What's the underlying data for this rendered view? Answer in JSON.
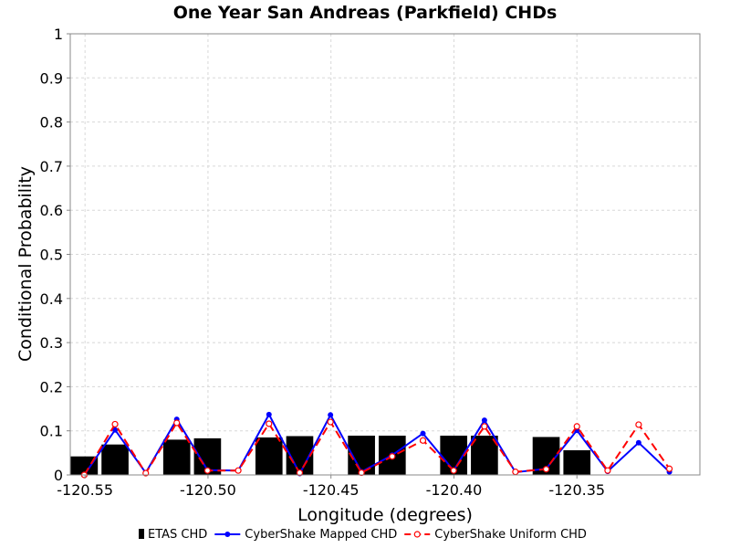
{
  "chart_data": {
    "type": "bar",
    "title": "One Year San Andreas (Parkfield) CHDs",
    "xlabel": "Longitude (degrees)",
    "ylabel": "Conditional Probability",
    "xlim": [
      -120.556,
      -120.3
    ],
    "ylim": [
      0,
      1
    ],
    "x_ticks": [
      {
        "value": -120.55,
        "label": "-120.55"
      },
      {
        "value": -120.5,
        "label": "-120.50"
      },
      {
        "value": -120.45,
        "label": "-120.45"
      },
      {
        "value": -120.4,
        "label": "-120.40"
      },
      {
        "value": -120.35,
        "label": "-120.35"
      }
    ],
    "y_ticks": [
      {
        "value": 0,
        "label": "0"
      },
      {
        "value": 0.1,
        "label": "0.1"
      },
      {
        "value": 0.2,
        "label": "0.2"
      },
      {
        "value": 0.3,
        "label": "0.3"
      },
      {
        "value": 0.4,
        "label": "0.4"
      },
      {
        "value": 0.5,
        "label": "0.5"
      },
      {
        "value": 0.6,
        "label": "0.6"
      },
      {
        "value": 0.7,
        "label": "0.7"
      },
      {
        "value": 0.8,
        "label": "0.8"
      },
      {
        "value": 0.9,
        "label": "0.9"
      },
      {
        "value": 1,
        "label": "1"
      }
    ],
    "grid": true,
    "legend_position": "bottom",
    "bar_width": 0.011,
    "series": [
      {
        "name": "ETAS CHD",
        "kind": "bar",
        "color": "#000000",
        "x": [
          -120.5503,
          -120.5378,
          -120.5127,
          -120.5002,
          -120.4752,
          -120.4627,
          -120.4376,
          -120.4251,
          -120.4001,
          -120.3876,
          -120.3625,
          -120.35
        ],
        "y": [
          0.042,
          0.069,
          0.08,
          0.083,
          0.085,
          0.088,
          0.089,
          0.089,
          0.089,
          0.089,
          0.086,
          0.056
        ]
      },
      {
        "name": "CyberShake Mapped CHD",
        "kind": "line",
        "color": "#0000ff",
        "x": [
          -120.5503,
          -120.5378,
          -120.5253,
          -120.5127,
          -120.5002,
          -120.4877,
          -120.4752,
          -120.4627,
          -120.4502,
          -120.4376,
          -120.4251,
          -120.4126,
          -120.4001,
          -120.3876,
          -120.375,
          -120.3625,
          -120.35,
          -120.3375,
          -120.3249,
          -120.3124
        ],
        "y": [
          0.0,
          0.102,
          0.005,
          0.126,
          0.011,
          0.01,
          0.137,
          0.003,
          0.136,
          0.007,
          0.045,
          0.094,
          0.01,
          0.124,
          0.006,
          0.014,
          0.101,
          0.008,
          0.073,
          0.007
        ]
      },
      {
        "name": "CyberShake Uniform CHD",
        "kind": "line",
        "color": "#ff0000",
        "x": [
          -120.5503,
          -120.5378,
          -120.5253,
          -120.5127,
          -120.5002,
          -120.4877,
          -120.4752,
          -120.4627,
          -120.4502,
          -120.4376,
          -120.4251,
          -120.4126,
          -120.4001,
          -120.3876,
          -120.375,
          -120.3625,
          -120.35,
          -120.3375,
          -120.3249,
          -120.3124
        ],
        "y": [
          0.0,
          0.115,
          0.004,
          0.118,
          0.01,
          0.01,
          0.116,
          0.005,
          0.12,
          0.005,
          0.042,
          0.078,
          0.01,
          0.11,
          0.007,
          0.013,
          0.11,
          0.01,
          0.114,
          0.014
        ]
      }
    ]
  },
  "colors": {
    "etas": "#000000",
    "mapped": "#0000ff",
    "uniform": "#ff0000",
    "grid": "#d8d8d8",
    "plot_border": "#888888"
  }
}
